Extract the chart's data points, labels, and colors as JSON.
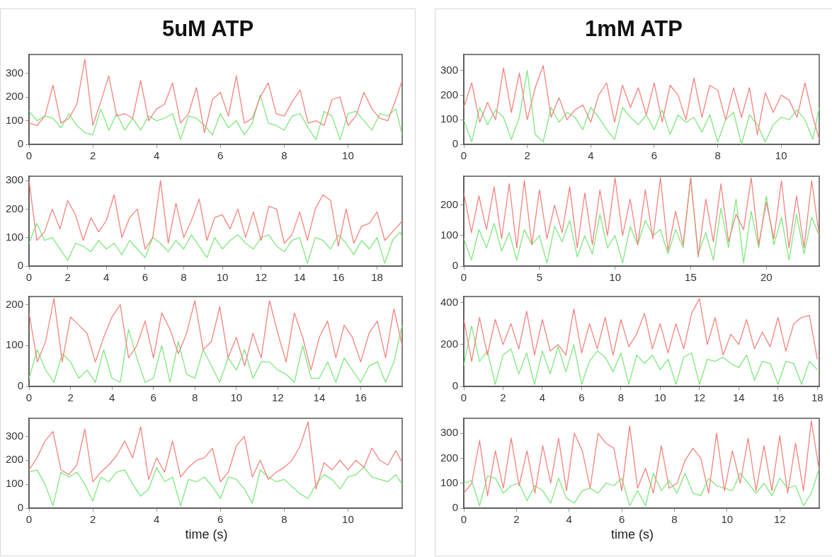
{
  "chart_data": [
    {
      "type": "line",
      "title": "5uM ATP",
      "xlim": [
        0,
        11.7
      ],
      "xticks": [
        0,
        2,
        4,
        6,
        8,
        10
      ],
      "ylim": [
        0,
        380
      ],
      "yticks": [
        0,
        100,
        200,
        300
      ],
      "grid": false,
      "legend": false,
      "x": [
        0,
        0.25,
        0.5,
        0.75,
        1,
        1.25,
        1.5,
        1.75,
        2,
        2.25,
        2.5,
        2.75,
        3,
        3.25,
        3.5,
        3.75,
        4,
        4.25,
        4.5,
        4.75,
        5,
        5.25,
        5.5,
        5.75,
        6,
        6.25,
        6.5,
        6.75,
        7,
        7.25,
        7.5,
        7.75,
        8,
        8.25,
        8.5,
        8.75,
        9,
        9.25,
        9.5,
        9.75,
        10,
        10.25,
        10.5,
        10.75,
        11,
        11.25,
        11.5,
        11.7
      ],
      "series": [
        {
          "color": "#f4837d",
          "values": [
            90,
            80,
            120,
            250,
            90,
            110,
            170,
            360,
            80,
            180,
            290,
            120,
            130,
            110,
            270,
            100,
            150,
            170,
            260,
            90,
            130,
            240,
            50,
            190,
            220,
            120,
            290,
            90,
            110,
            200,
            260,
            130,
            120,
            180,
            230,
            90,
            100,
            80,
            190,
            200,
            80,
            120,
            220,
            150,
            110,
            100,
            190,
            270
          ]
        },
        {
          "color": "#7ee87e",
          "values": [
            140,
            100,
            120,
            110,
            70,
            130,
            80,
            50,
            40,
            150,
            60,
            130,
            60,
            110,
            60,
            120,
            100,
            110,
            130,
            20,
            120,
            110,
            80,
            40,
            130,
            70,
            100,
            40,
            90,
            210,
            90,
            80,
            60,
            120,
            130,
            70,
            20,
            140,
            120,
            20,
            130,
            140,
            100,
            60,
            130,
            120,
            150,
            40
          ]
        }
      ]
    },
    {
      "type": "line",
      "xlim": [
        0,
        19.3
      ],
      "xticks": [
        0,
        2,
        4,
        6,
        8,
        10,
        12,
        14,
        16,
        18
      ],
      "ylim": [
        0,
        315
      ],
      "yticks": [
        0,
        100,
        200,
        300
      ],
      "grid": false,
      "legend": false,
      "x": [
        0,
        0.4,
        0.8,
        1.2,
        1.6,
        2,
        2.4,
        2.8,
        3.2,
        3.6,
        4,
        4.4,
        4.8,
        5.2,
        5.6,
        6,
        6.4,
        6.8,
        7.2,
        7.6,
        8,
        8.4,
        8.8,
        9.2,
        9.6,
        10,
        10.4,
        10.8,
        11.2,
        11.6,
        12,
        12.4,
        12.8,
        13.2,
        13.6,
        14,
        14.4,
        14.8,
        15.2,
        15.6,
        16,
        16.4,
        16.8,
        17.2,
        17.6,
        18,
        18.4,
        18.8,
        19.2,
        19.3
      ],
      "series": [
        {
          "color": "#f4837d",
          "values": [
            300,
            90,
            120,
            200,
            130,
            230,
            180,
            90,
            170,
            120,
            160,
            250,
            100,
            170,
            200,
            60,
            100,
            300,
            80,
            220,
            100,
            160,
            235,
            90,
            170,
            180,
            130,
            200,
            100,
            190,
            90,
            210,
            200,
            80,
            110,
            190,
            90,
            200,
            250,
            230,
            70,
            200,
            80,
            140,
            150,
            190,
            90,
            120,
            150,
            160
          ]
        },
        {
          "color": "#7ee87e",
          "values": [
            80,
            150,
            90,
            100,
            60,
            20,
            80,
            70,
            50,
            90,
            60,
            80,
            40,
            90,
            60,
            30,
            100,
            80,
            50,
            90,
            60,
            110,
            70,
            30,
            100,
            60,
            90,
            110,
            80,
            60,
            100,
            110,
            70,
            50,
            90,
            100,
            10,
            100,
            90,
            60,
            110,
            80,
            40,
            90,
            60,
            100,
            10,
            90,
            120,
            100
          ]
        }
      ]
    },
    {
      "type": "line",
      "xlim": [
        0,
        18
      ],
      "xticks": [
        0,
        2,
        4,
        6,
        8,
        10,
        12,
        14,
        16
      ],
      "ylim": [
        0,
        220
      ],
      "yticks": [
        0,
        100,
        200
      ],
      "grid": false,
      "legend": false,
      "x": [
        0,
        0.4,
        0.8,
        1.2,
        1.6,
        2,
        2.4,
        2.8,
        3.2,
        3.6,
        4,
        4.4,
        4.8,
        5.2,
        5.6,
        6,
        6.4,
        6.8,
        7.2,
        7.6,
        8,
        8.4,
        8.8,
        9.2,
        9.6,
        10,
        10.4,
        10.8,
        11.2,
        11.6,
        12,
        12.4,
        12.8,
        13.2,
        13.6,
        14,
        14.4,
        14.8,
        15.2,
        15.6,
        16,
        16.4,
        16.8,
        17.2,
        17.6,
        18
      ],
      "series": [
        {
          "color": "#f4837d",
          "values": [
            180,
            60,
            110,
            215,
            60,
            170,
            150,
            130,
            60,
            120,
            170,
            200,
            70,
            100,
            160,
            70,
            180,
            140,
            80,
            130,
            210,
            90,
            110,
            195,
            70,
            120,
            50,
            130,
            70,
            210,
            130,
            60,
            180,
            120,
            40,
            120,
            160,
            70,
            150,
            120,
            60,
            130,
            160,
            70,
            190,
            100
          ]
        },
        {
          "color": "#7ee87e",
          "values": [
            20,
            90,
            40,
            10,
            80,
            60,
            20,
            40,
            10,
            90,
            20,
            10,
            140,
            70,
            10,
            20,
            100,
            10,
            110,
            30,
            20,
            90,
            50,
            10,
            70,
            40,
            90,
            20,
            60,
            60,
            40,
            30,
            10,
            100,
            20,
            20,
            60,
            10,
            70,
            40,
            10,
            50,
            60,
            10,
            60,
            150
          ]
        }
      ]
    },
    {
      "type": "line",
      "xlabel": "time (s)",
      "xlim": [
        0,
        11.7
      ],
      "xticks": [
        0,
        2,
        4,
        6,
        8,
        10
      ],
      "ylim": [
        0,
        375
      ],
      "yticks": [
        0,
        100,
        200,
        300
      ],
      "grid": false,
      "legend": false,
      "x": [
        0,
        0.25,
        0.5,
        0.75,
        1,
        1.25,
        1.5,
        1.75,
        2,
        2.25,
        2.5,
        2.75,
        3,
        3.25,
        3.5,
        3.75,
        4,
        4.25,
        4.5,
        4.75,
        5,
        5.25,
        5.5,
        5.75,
        6,
        6.25,
        6.5,
        6.75,
        7,
        7.25,
        7.5,
        7.75,
        8,
        8.25,
        8.5,
        8.75,
        9,
        9.25,
        9.5,
        9.75,
        10,
        10.25,
        10.5,
        10.75,
        11,
        11.25,
        11.5,
        11.7
      ],
      "series": [
        {
          "color": "#f4837d",
          "values": [
            160,
            210,
            280,
            320,
            160,
            140,
            180,
            330,
            110,
            150,
            180,
            220,
            280,
            210,
            340,
            120,
            210,
            150,
            280,
            130,
            170,
            200,
            210,
            250,
            110,
            150,
            260,
            300,
            130,
            200,
            120,
            150,
            170,
            200,
            260,
            360,
            80,
            190,
            160,
            200,
            160,
            200,
            170,
            250,
            200,
            180,
            240,
            190
          ]
        },
        {
          "color": "#7ee87e",
          "values": [
            150,
            160,
            100,
            10,
            150,
            130,
            150,
            100,
            30,
            130,
            110,
            150,
            160,
            100,
            50,
            80,
            170,
            110,
            130,
            10,
            120,
            110,
            130,
            90,
            40,
            130,
            120,
            80,
            20,
            160,
            130,
            110,
            120,
            90,
            60,
            40,
            100,
            140,
            120,
            80,
            130,
            140,
            170,
            130,
            120,
            110,
            140,
            100
          ]
        }
      ]
    },
    {
      "type": "line",
      "title": "1mM ATP",
      "xlim": [
        0,
        11.2
      ],
      "xticks": [
        0,
        2,
        4,
        6,
        8,
        10
      ],
      "ylim": [
        0,
        365
      ],
      "yticks": [
        0,
        100,
        200,
        300
      ],
      "grid": false,
      "legend": false,
      "x": [
        0,
        0.25,
        0.5,
        0.75,
        1,
        1.25,
        1.5,
        1.75,
        2,
        2.25,
        2.5,
        2.75,
        3,
        3.25,
        3.5,
        3.75,
        4,
        4.25,
        4.5,
        4.75,
        5,
        5.25,
        5.5,
        5.75,
        6,
        6.25,
        6.5,
        6.75,
        7,
        7.25,
        7.5,
        7.75,
        8,
        8.25,
        8.5,
        8.75,
        9,
        9.25,
        9.5,
        9.75,
        10,
        10.25,
        10.5,
        10.75,
        11,
        11.2
      ],
      "series": [
        {
          "color": "#f4837d",
          "values": [
            150,
            250,
            90,
            170,
            100,
            310,
            130,
            290,
            100,
            230,
            320,
            110,
            190,
            100,
            140,
            160,
            90,
            200,
            250,
            90,
            240,
            150,
            230,
            120,
            250,
            90,
            240,
            200,
            100,
            270,
            110,
            240,
            220,
            100,
            230,
            110,
            230,
            40,
            210,
            130,
            200,
            180,
            110,
            250,
            110,
            20
          ]
        },
        {
          "color": "#7ee87e",
          "values": [
            100,
            10,
            150,
            80,
            140,
            110,
            20,
            110,
            300,
            40,
            10,
            150,
            90,
            130,
            110,
            60,
            150,
            110,
            60,
            20,
            150,
            110,
            80,
            120,
            60,
            140,
            40,
            120,
            90,
            110,
            50,
            120,
            10,
            100,
            130,
            0,
            120,
            80,
            10,
            80,
            110,
            100,
            140,
            100,
            20,
            150
          ]
        }
      ]
    },
    {
      "type": "line",
      "xlim": [
        0,
        23.5
      ],
      "xticks": [
        0,
        5,
        10,
        15,
        20
      ],
      "ylim": [
        0,
        295
      ],
      "yticks": [
        0,
        100,
        200
      ],
      "grid": false,
      "legend": false,
      "x": [
        0,
        0.5,
        1,
        1.5,
        2,
        2.5,
        3,
        3.5,
        4,
        4.5,
        5,
        5.5,
        6,
        6.5,
        7,
        7.5,
        8,
        8.5,
        9,
        9.5,
        10,
        10.5,
        11,
        11.5,
        12,
        12.5,
        13,
        13.5,
        14,
        14.5,
        15,
        15.5,
        16,
        16.5,
        17,
        17.5,
        18,
        18.5,
        19,
        19.5,
        20,
        20.5,
        21,
        21.5,
        22,
        22.5,
        23,
        23.5
      ],
      "series": [
        {
          "color": "#f4837d",
          "values": [
            240,
            110,
            230,
            120,
            260,
            90,
            270,
            60,
            280,
            70,
            250,
            90,
            200,
            110,
            260,
            60,
            240,
            70,
            250,
            100,
            290,
            100,
            220,
            70,
            250,
            90,
            290,
            50,
            180,
            70,
            290,
            30,
            220,
            80,
            270,
            80,
            170,
            120,
            290,
            70,
            210,
            90,
            280,
            60,
            230,
            60,
            280,
            100
          ]
        },
        {
          "color": "#7ee87e",
          "values": [
            90,
            20,
            120,
            60,
            140,
            50,
            110,
            20,
            120,
            70,
            100,
            10,
            130,
            80,
            150,
            30,
            100,
            40,
            170,
            60,
            100,
            10,
            130,
            70,
            150,
            100,
            120,
            40,
            120,
            60,
            290,
            40,
            110,
            20,
            190,
            60,
            220,
            10,
            180,
            60,
            230,
            70,
            160,
            20,
            170,
            40,
            160,
            100
          ]
        }
      ]
    },
    {
      "type": "line",
      "xlim": [
        0,
        18.1
      ],
      "xticks": [
        0,
        2,
        4,
        6,
        8,
        10,
        12,
        14,
        16,
        18
      ],
      "ylim": [
        0,
        430
      ],
      "yticks": [
        0,
        200,
        400
      ],
      "grid": false,
      "legend": false,
      "x": [
        0,
        0.4,
        0.8,
        1.2,
        1.6,
        2,
        2.4,
        2.8,
        3.2,
        3.6,
        4,
        4.4,
        4.8,
        5.2,
        5.6,
        6,
        6.4,
        6.8,
        7.2,
        7.6,
        8,
        8.4,
        8.8,
        9.2,
        9.6,
        10,
        10.4,
        10.8,
        11.2,
        11.6,
        12,
        12.4,
        12.8,
        13.2,
        13.6,
        14,
        14.4,
        14.8,
        15.2,
        15.6,
        16,
        16.4,
        16.8,
        17.2,
        17.6,
        18
      ],
      "series": [
        {
          "color": "#f4837d",
          "values": [
            320,
            120,
            330,
            150,
            320,
            200,
            300,
            180,
            360,
            150,
            320,
            170,
            200,
            150,
            370,
            160,
            300,
            180,
            330,
            150,
            320,
            190,
            250,
            350,
            180,
            300,
            160,
            300,
            180,
            350,
            420,
            200,
            330,
            150,
            250,
            200,
            320,
            180,
            260,
            190,
            330,
            170,
            300,
            330,
            340,
            130
          ]
        },
        {
          "color": "#7ee87e",
          "values": [
            100,
            290,
            120,
            170,
            10,
            150,
            180,
            60,
            160,
            10,
            170,
            60,
            190,
            70,
            200,
            10,
            120,
            170,
            140,
            70,
            160,
            10,
            150,
            110,
            150,
            80,
            130,
            10,
            140,
            160,
            10,
            130,
            120,
            140,
            110,
            90,
            150,
            30,
            120,
            110,
            10,
            120,
            110,
            10,
            120,
            80
          ]
        }
      ]
    },
    {
      "type": "line",
      "xlabel": "time (s)",
      "xlim": [
        0,
        13.5
      ],
      "xticks": [
        0,
        2,
        4,
        6,
        8,
        10,
        12
      ],
      "ylim": [
        0,
        360
      ],
      "yticks": [
        0,
        100,
        200,
        300
      ],
      "grid": false,
      "legend": false,
      "x": [
        0,
        0.3,
        0.6,
        0.9,
        1.2,
        1.5,
        1.8,
        2.1,
        2.4,
        2.7,
        3,
        3.3,
        3.6,
        3.9,
        4.2,
        4.5,
        4.8,
        5.1,
        5.4,
        5.7,
        6,
        6.3,
        6.6,
        6.9,
        7.2,
        7.5,
        7.8,
        8.1,
        8.4,
        8.7,
        9,
        9.3,
        9.6,
        9.9,
        10.2,
        10.5,
        10.8,
        11.1,
        11.4,
        11.7,
        12,
        12.3,
        12.6,
        12.9,
        13.2,
        13.5
      ],
      "series": [
        {
          "color": "#f4837d",
          "values": [
            60,
            100,
            270,
            50,
            230,
            80,
            280,
            90,
            230,
            60,
            250,
            100,
            280,
            70,
            300,
            230,
            80,
            300,
            260,
            240,
            70,
            330,
            80,
            160,
            60,
            250,
            80,
            100,
            190,
            240,
            200,
            60,
            300,
            70,
            230,
            100,
            280,
            70,
            250,
            70,
            290,
            60,
            260,
            70,
            350,
            150
          ]
        },
        {
          "color": "#7ee87e",
          "values": [
            100,
            110,
            10,
            130,
            120,
            60,
            90,
            100,
            30,
            90,
            70,
            20,
            120,
            40,
            20,
            70,
            80,
            60,
            100,
            90,
            120,
            10,
            70,
            10,
            140,
            70,
            110,
            60,
            140,
            60,
            50,
            120,
            90,
            80,
            70,
            140,
            100,
            60,
            100,
            50,
            120,
            80,
            90,
            10,
            60,
            160
          ]
        }
      ]
    }
  ]
}
